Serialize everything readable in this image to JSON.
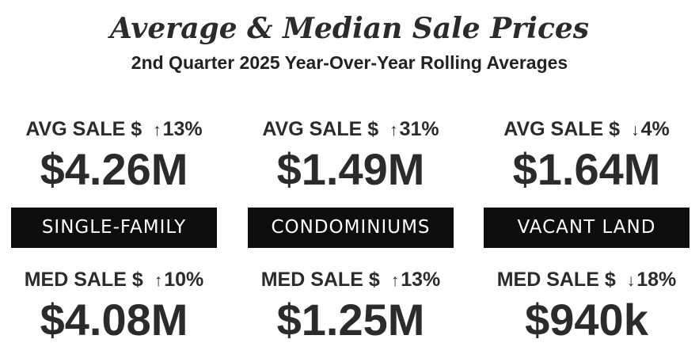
{
  "header": {
    "title": "Average & Median Sale Prices",
    "subtitle": "2nd Quarter 2025 Year-Over-Year Rolling Averages"
  },
  "columns": [
    {
      "category": "SINGLE-FAMILY",
      "avg_label": "AVG SALE $",
      "avg_arrow": "↑",
      "avg_change": "13%",
      "avg_direction": "up",
      "avg_value": "$4.26M",
      "med_label": "MED SALE $",
      "med_arrow": "↑",
      "med_change": "10%",
      "med_direction": "up",
      "med_value": "$4.08M"
    },
    {
      "category": "CONDOMINIUMS",
      "avg_label": "AVG SALE $",
      "avg_arrow": "↑",
      "avg_change": "31%",
      "avg_direction": "up",
      "avg_value": "$1.49M",
      "med_label": "MED SALE $",
      "med_arrow": "↑",
      "med_change": "13%",
      "med_direction": "up",
      "med_value": "$1.25M"
    },
    {
      "category": "VACANT LAND",
      "avg_label": "AVG SALE $",
      "avg_arrow": "↓",
      "avg_change": "4%",
      "avg_direction": "down",
      "avg_value": "$1.64M",
      "med_label": "MED SALE $",
      "med_arrow": "↓",
      "med_change": "18%",
      "med_direction": "down",
      "med_value": "$940k"
    }
  ],
  "colors": {
    "text": "#2b2b2b",
    "band_background": "#0d0d0d",
    "band_text": "#ffffff"
  }
}
